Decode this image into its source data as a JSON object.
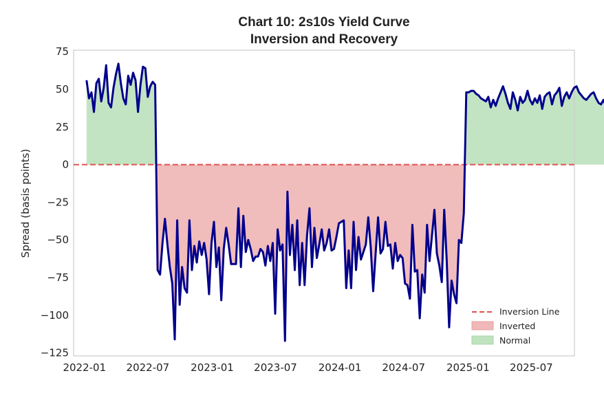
{
  "chart_data": {
    "type": "line",
    "title_line1": "Chart 10: 2s10s Yield Curve",
    "title_line2": "Inversion and Recovery",
    "xlabel": "",
    "ylabel": "Spread (basis points)",
    "ylim": [
      -127,
      76
    ],
    "xlim": [
      "2021-12-01",
      "2025-11-01"
    ],
    "grid": false,
    "legend_position": "lower-right",
    "y_ticks": [
      75,
      50,
      25,
      0,
      -25,
      -50,
      -75,
      -100,
      -125
    ],
    "x_ticks": [
      "2022-01",
      "2022-07",
      "2023-01",
      "2023-07",
      "2024-01",
      "2024-07",
      "2025-01",
      "2025-07"
    ],
    "colors": {
      "line": "#00008b",
      "inversion_line": "#e05050",
      "inverted_fill": "#f0b8b8",
      "normal_fill": "#bfe3bf",
      "axes": "#cccccc"
    },
    "reference_line": {
      "y": 0,
      "label": "Inversion Line"
    },
    "legend": [
      {
        "label": "Inversion Line",
        "kind": "dashed-line"
      },
      {
        "label": "Inverted",
        "kind": "patch-red"
      },
      {
        "label": "Normal",
        "kind": "patch-green"
      }
    ],
    "series": [
      {
        "start_date": "2022-01-07",
        "frequency": "weekly",
        "values": [
          56,
          44,
          48,
          35,
          54,
          57,
          42,
          51,
          66,
          41,
          38,
          51,
          60,
          67,
          54,
          44,
          40,
          59,
          53,
          61,
          56,
          35,
          53,
          65,
          64,
          45,
          52,
          55,
          53,
          -70,
          -73,
          -52,
          -36,
          -53,
          -68,
          -79,
          -116,
          -37,
          -93,
          -68,
          -82,
          -85,
          -37,
          -70,
          -54,
          -65,
          -51,
          -60,
          -52,
          -63,
          -86,
          -52,
          -38,
          -68,
          -55,
          -90,
          -56,
          -42,
          -53,
          -66,
          -66,
          -66,
          -29,
          -68,
          -34,
          -58,
          -50,
          -56,
          -64,
          -61,
          -61,
          -56,
          -58,
          -67,
          -54,
          -64,
          -52,
          -99,
          -43,
          -57,
          -53,
          -117,
          -18,
          -60,
          -40,
          -70,
          -37,
          -80,
          -52,
          -80,
          -47,
          -29,
          -68,
          -42,
          -62,
          -53,
          -43,
          -57,
          -52,
          -43,
          -57,
          -56,
          -48,
          -39,
          -38,
          -37,
          -82,
          -57,
          -82,
          -38,
          -70,
          -48,
          -63,
          -58,
          -53,
          -35,
          -55,
          -84,
          -59,
          -35,
          -59,
          -56,
          -38,
          -54,
          -53,
          -69,
          -52,
          -64,
          -60,
          -62,
          -79,
          -80,
          -89,
          -40,
          -71,
          -70,
          -102,
          -73,
          -85,
          -40,
          -64,
          -47,
          -30,
          -59,
          -67,
          -78,
          -30,
          -63,
          -108,
          -77,
          -86,
          -92,
          -50,
          -52,
          -32,
          48,
          48,
          49,
          49,
          47,
          46,
          44,
          43,
          42,
          45,
          38,
          43,
          39,
          44,
          48,
          52,
          47,
          41,
          37,
          48,
          43,
          36,
          45,
          41,
          43,
          49,
          43,
          40,
          44,
          41,
          46,
          37,
          45,
          47,
          48,
          40,
          46,
          48,
          51,
          39,
          45,
          48,
          44,
          48,
          51,
          52,
          48,
          46,
          44,
          43,
          45,
          47,
          48,
          44,
          41,
          40,
          43,
          39,
          48,
          53,
          40,
          41,
          43,
          48,
          40,
          45,
          52,
          44,
          49,
          39,
          54,
          44,
          45,
          44,
          51,
          43,
          41,
          43,
          56,
          40
        ]
      }
    ]
  }
}
